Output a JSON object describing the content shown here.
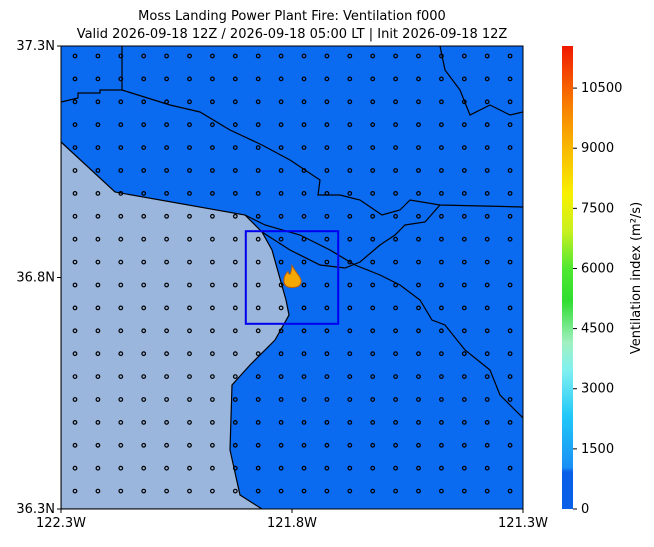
{
  "chart_data": {
    "type": "map",
    "title": "Moss Landing Power Plant Fire: Ventilation f000",
    "subtitle": "Valid 2026-09-18 12Z / 2026-09-18 05:00 LT | Init 2026-09-18 12Z",
    "xlim": [
      -122.3,
      -121.3
    ],
    "xticks": [
      {
        "value": -122.3,
        "label": "122.3W"
      },
      {
        "value": -121.8,
        "label": "121.8W"
      },
      {
        "value": -121.3,
        "label": "121.3W"
      }
    ],
    "ylim": [
      36.3,
      37.3
    ],
    "yticks": [
      {
        "value": 36.3,
        "label": "36.3N"
      },
      {
        "value": 36.8,
        "label": "36.8N"
      },
      {
        "value": 37.3,
        "label": "37.3N"
      }
    ],
    "colorbar": {
      "label": "Ventilation index (m²/s)",
      "lim": [
        0,
        11550
      ],
      "ticks": [
        0,
        1500,
        3000,
        4500,
        6000,
        7500,
        9000,
        10500
      ]
    },
    "box": {
      "lon": [
        -121.9,
        -121.7
      ],
      "lat": [
        36.7,
        36.9
      ],
      "color": "#0000ee"
    },
    "fire": {
      "lon": -121.8,
      "lat": 36.8
    }
  }
}
